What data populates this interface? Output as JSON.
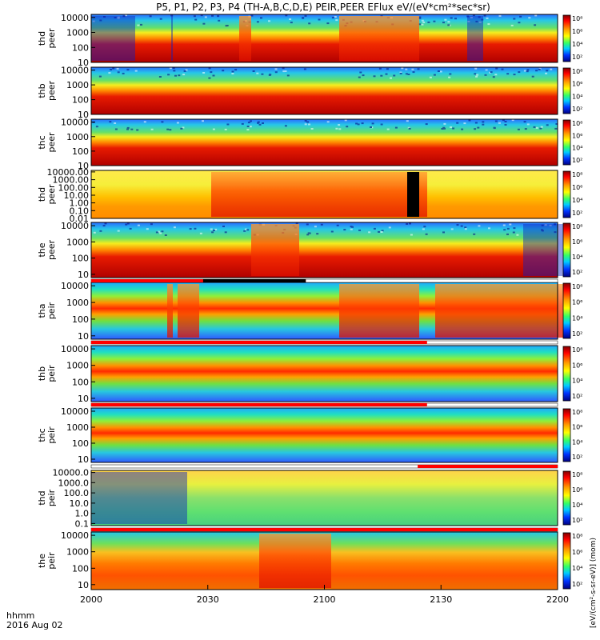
{
  "title": "P5, P1, P2, P3, P4 (TH-A,B,C,D,E) PEIR,PEER EFlux eV/(eV*cm²*sec*sr)",
  "colorbar_label": "[eV/(cm²-s-sr-eV)] (mom)",
  "chart_data": {
    "type": "heatmap",
    "x_axis": {
      "ticks": [
        "2000",
        "2030",
        "2100",
        "2130",
        "2200"
      ],
      "range": [
        "2000",
        "2200"
      ],
      "time_label": "hhmm",
      "date_label": "2016 Aug 02"
    },
    "colorbar_ticks": [
      "10⁸",
      "10⁶",
      "10⁴",
      "10²"
    ],
    "panels": [
      {
        "probe": "thd",
        "species": "peer",
        "label1": "thd",
        "label2": "peer",
        "ticks": [
          "10000",
          "1000",
          "100",
          "10"
        ],
        "log_ylim": [
          1,
          4.2
        ],
        "floor": 1.45,
        "dens": "hi",
        "bands": [
          [
            0,
            55,
            "dens"
          ],
          [
            100,
            102,
            "dens"
          ],
          [
            185,
            200,
            "hot"
          ],
          [
            310,
            410,
            "hot"
          ],
          [
            470,
            490,
            "dens"
          ]
        ]
      },
      {
        "probe": "thb",
        "species": "peer",
        "label1": "thb",
        "label2": "peer",
        "ticks": [
          "10000",
          "1000",
          "100",
          "10"
        ],
        "log_ylim": [
          1,
          4.2
        ],
        "floor": 1.7,
        "dens": "hi",
        "bands": []
      },
      {
        "probe": "thc",
        "species": "peer",
        "label1": "thc",
        "label2": "peer",
        "ticks": [
          "10000",
          "1000",
          "100",
          "10"
        ],
        "log_ylim": [
          1,
          4.2
        ],
        "floor": 2.4,
        "dens": "hi",
        "bands": []
      },
      {
        "probe": "thd",
        "species": "peer",
        "label1": "thd",
        "label2": "peer",
        "ticks": [
          "10000.00",
          "1000.00",
          "100.00",
          "10.00",
          "1.00",
          "0.10",
          "0.01"
        ],
        "log_ylim": [
          -2,
          4.2
        ],
        "floor": 3.3,
        "dens": "mid",
        "bands": [
          [
            150,
            420,
            "hot"
          ],
          [
            395,
            410,
            "black"
          ]
        ]
      },
      {
        "probe": "the",
        "species": "peer",
        "label1": "the",
        "label2": "peer",
        "ticks": [
          "10000",
          "1000",
          "100",
          "10"
        ],
        "log_ylim": [
          0.8,
          4.2
        ],
        "floor": 2.6,
        "dens": "hi",
        "bands": [
          [
            200,
            260,
            "hot"
          ],
          [
            540,
            590,
            "dens"
          ]
        ]
      },
      {
        "probe": "tha",
        "species": "peir",
        "label1": "tha",
        "label2": "peir",
        "ticks": [
          "10000",
          "1000",
          "100",
          "10"
        ],
        "log_ylim": [
          0.8,
          4.2
        ],
        "floor": 2.7,
        "dens": "low",
        "bands": [
          [
            95,
            102,
            "hot"
          ],
          [
            108,
            135,
            "hot"
          ],
          [
            310,
            410,
            "hot"
          ],
          [
            430,
            590,
            "hot"
          ]
        ]
      },
      {
        "probe": "thb",
        "species": "peir",
        "label1": "thb",
        "label2": "peir",
        "ticks": [
          "10000",
          "1000",
          "100",
          "10"
        ],
        "log_ylim": [
          0.8,
          4.2
        ],
        "floor": 3.1,
        "dens": "low",
        "bands": []
      },
      {
        "probe": "thc",
        "species": "peir",
        "label1": "thc",
        "label2": "peir",
        "ticks": [
          "10000",
          "1000",
          "100",
          "10"
        ],
        "log_ylim": [
          0.8,
          4.2
        ],
        "floor": 3.1,
        "dens": "low",
        "bands": []
      },
      {
        "probe": "thd",
        "species": "peir",
        "label1": "thd",
        "label2": "peir",
        "ticks": [
          "10000.0",
          "1000.0",
          "100.0",
          "10.0",
          "1.0",
          "0.1"
        ],
        "log_ylim": [
          -1.2,
          4.2
        ],
        "floor": 2.0,
        "dens": "mid",
        "bands": [
          [
            0,
            120,
            "dens"
          ]
        ]
      },
      {
        "probe": "the",
        "species": "peir",
        "label1": "the",
        "label2": "peir",
        "ticks": [
          "10000",
          "1000",
          "100",
          "10"
        ],
        "log_ylim": [
          0.7,
          4.2
        ],
        "floor": 2.5,
        "dens": "hi",
        "bands": [
          [
            210,
            300,
            "hot"
          ]
        ]
      }
    ]
  }
}
